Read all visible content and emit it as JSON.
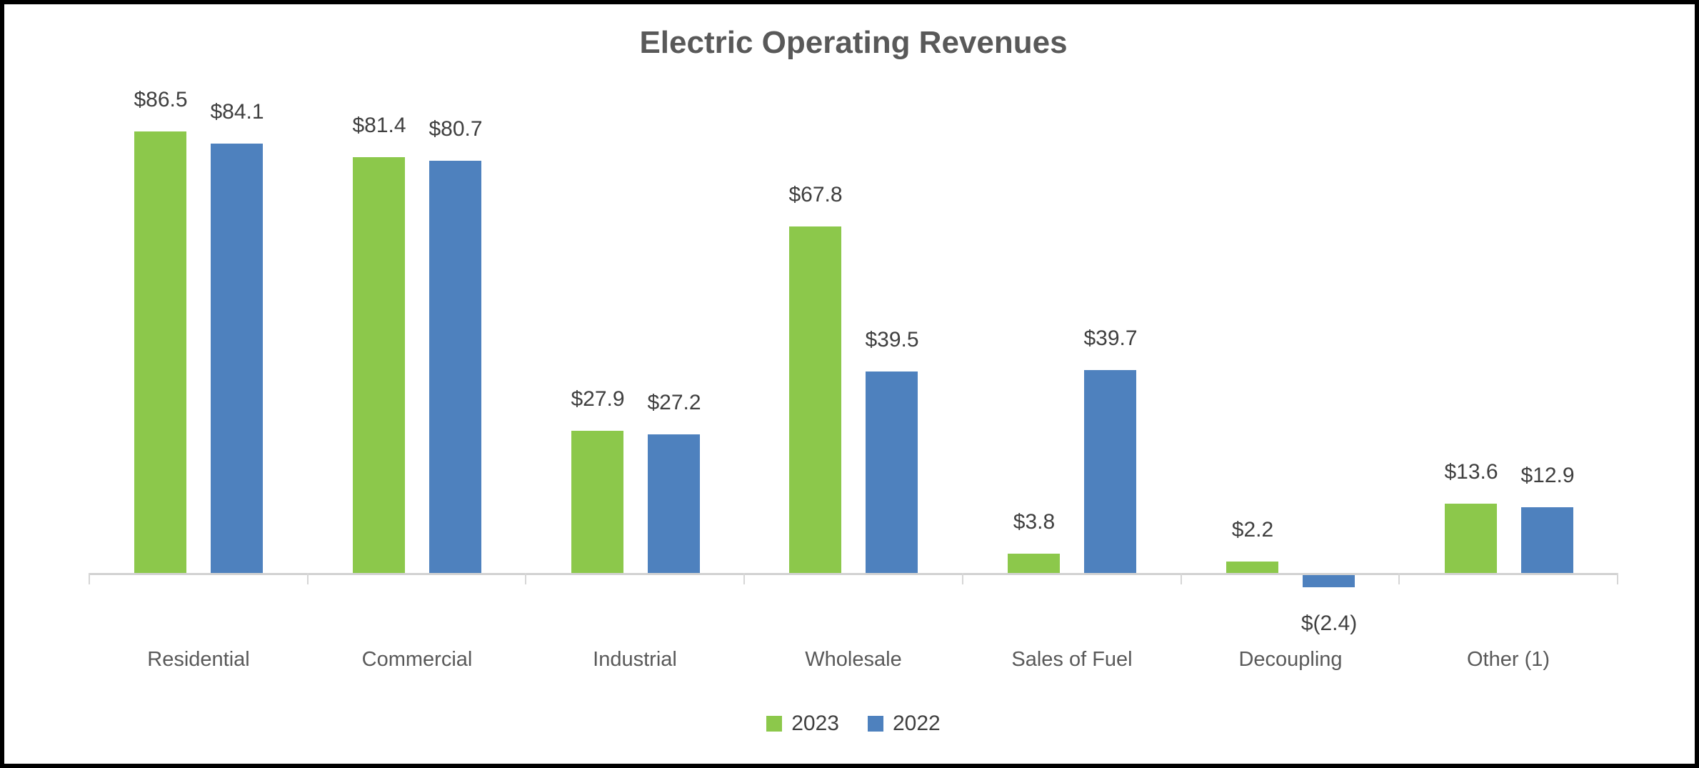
{
  "chart_data": {
    "type": "bar",
    "title": "Electric Operating Revenues",
    "categories": [
      "Residential",
      "Commercial",
      "Industrial",
      "Wholesale",
      "Sales of Fuel",
      "Decoupling",
      "Other (1)"
    ],
    "series": [
      {
        "name": "2023",
        "color": "#8cc84b",
        "values": [
          86.5,
          81.4,
          27.9,
          67.8,
          3.8,
          2.2,
          13.6
        ],
        "labels": [
          "$86.5",
          "$81.4",
          "$27.9",
          "$67.8",
          "$3.8",
          "$2.2",
          "$13.6"
        ]
      },
      {
        "name": "2022",
        "color": "#4e81be",
        "values": [
          84.1,
          80.7,
          27.2,
          39.5,
          39.7,
          -2.4,
          12.9
        ],
        "labels": [
          "$84.1",
          "$80.7",
          "$27.2",
          "$39.5",
          "$39.7",
          "$(2.4)",
          "$12.9"
        ]
      }
    ],
    "ylim": [
      -5,
      95
    ],
    "grid": false,
    "y_axis_labels": false,
    "legend_position": "bottom",
    "data_labels": "outside-end",
    "colors": {
      "title_text": "#595959",
      "data_label_text": "#3f3f3f",
      "category_label_text": "#595959",
      "axis_line": "#d2d2d2",
      "frame_border": "#000000",
      "background": "#ffffff"
    }
  }
}
